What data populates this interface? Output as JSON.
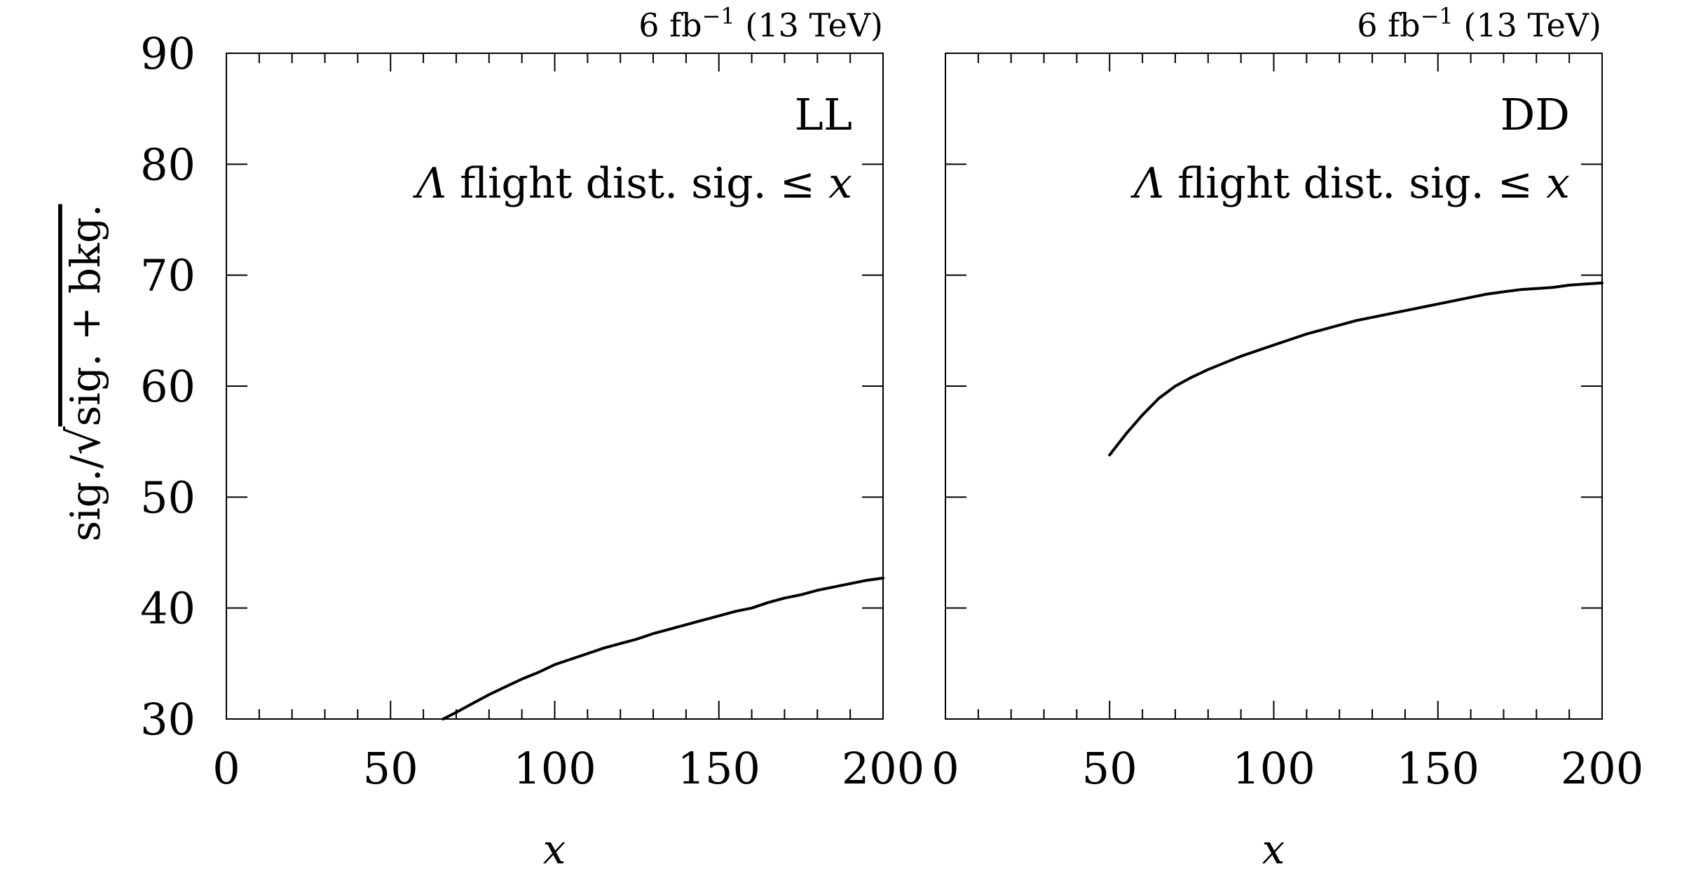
{
  "figure": {
    "ylabel": {
      "prefix": "sig./",
      "radical": "√",
      "under": "sig. + bkg."
    },
    "xlabel": "x"
  },
  "chart_data": [
    {
      "type": "line",
      "panel": "left",
      "lumi_text": {
        "main": "6 fb",
        "sup": "−1",
        "tail": " (13 TeV)"
      },
      "tag": "LL",
      "cut": {
        "symbol": "Λ",
        "text": " flight dist. sig. ",
        "op": "≤",
        "var": " x"
      },
      "xlabel": "x",
      "ylabel": "sig./√sig. + bkg.",
      "xlim": [
        0,
        200
      ],
      "ylim": [
        30,
        90
      ],
      "xticks": [
        0,
        50,
        100,
        150,
        200
      ],
      "yticks": [
        30,
        40,
        50,
        60,
        70,
        80,
        90
      ],
      "grid": false,
      "series": [
        {
          "x": [
            66,
            70,
            75,
            80,
            85,
            90,
            95,
            100,
            105,
            110,
            115,
            120,
            125,
            130,
            135,
            140,
            145,
            150,
            155,
            160,
            165,
            170,
            175,
            180,
            185,
            190,
            195,
            200
          ],
          "y": [
            30.0,
            30.6,
            31.4,
            32.2,
            32.9,
            33.6,
            34.2,
            34.9,
            35.4,
            35.9,
            36.4,
            36.8,
            37.2,
            37.7,
            38.1,
            38.5,
            38.9,
            39.3,
            39.7,
            40.0,
            40.5,
            40.9,
            41.2,
            41.6,
            41.9,
            42.2,
            42.5,
            42.7
          ]
        }
      ]
    },
    {
      "type": "line",
      "panel": "right",
      "lumi_text": {
        "main": "6 fb",
        "sup": "−1",
        "tail": " (13 TeV)"
      },
      "tag": "DD",
      "cut": {
        "symbol": "Λ",
        "text": " flight dist. sig. ",
        "op": "≤",
        "var": " x"
      },
      "xlabel": "x",
      "xlim": [
        0,
        200
      ],
      "ylim": [
        30,
        90
      ],
      "xticks": [
        0,
        50,
        100,
        150,
        200
      ],
      "yticks": [
        30,
        40,
        50,
        60,
        70,
        80,
        90
      ],
      "grid": false,
      "series": [
        {
          "x": [
            50,
            55,
            60,
            65,
            70,
            75,
            80,
            85,
            90,
            95,
            100,
            105,
            110,
            115,
            120,
            125,
            130,
            135,
            140,
            145,
            150,
            155,
            160,
            165,
            170,
            175,
            180,
            185,
            190,
            195,
            200
          ],
          "y": [
            53.8,
            55.7,
            57.4,
            58.9,
            60.0,
            60.8,
            61.5,
            62.1,
            62.7,
            63.2,
            63.7,
            64.2,
            64.7,
            65.1,
            65.5,
            65.9,
            66.2,
            66.5,
            66.8,
            67.1,
            67.4,
            67.7,
            68.0,
            68.3,
            68.5,
            68.7,
            68.8,
            68.9,
            69.1,
            69.2,
            69.3
          ]
        }
      ]
    }
  ]
}
